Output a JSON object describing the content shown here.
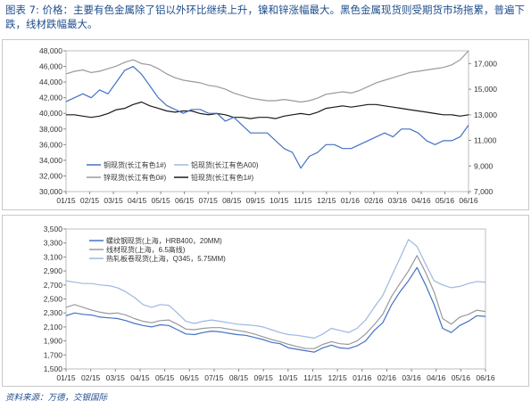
{
  "header": {
    "title": "图表 7: 价格：主要有色金属除了铝以外环比继续上升，镍和锌涨幅最大。黑色金属现货则受期货市场拖累，普遍下跌，线材跌幅最大。"
  },
  "footer": {
    "source": "资料来源：万德，交银国际"
  },
  "colors": {
    "copper": "#4472c4",
    "aluminum": "#9db8e0",
    "zinc": "#9a9a9a",
    "lead": "#1a1a1a",
    "rebar": "#4472c4",
    "wire": "#9a9a9a",
    "hrc": "#9db8e0"
  },
  "chart_data": [
    {
      "type": "line",
      "title": "",
      "x_ticks": [
        "01/15",
        "02/15",
        "03/15",
        "04/15",
        "05/15",
        "06/15",
        "07/15",
        "08/15",
        "09/15",
        "10/15",
        "11/15",
        "12/15",
        "01/16",
        "02/16",
        "03/16",
        "04/16",
        "05/16",
        "06/16"
      ],
      "y_left": {
        "min": 30000,
        "max": 48000,
        "step": 2000,
        "ticks": [
          "30,000",
          "32,000",
          "34,000",
          "36,000",
          "38,000",
          "40,000",
          "42,000",
          "44,000",
          "46,000",
          "48,000"
        ]
      },
      "y_right": {
        "min": 7000,
        "max": 18000,
        "step": 2000,
        "ticks": [
          "7,000",
          "9,000",
          "11,000",
          "13,000",
          "15,000",
          "17,000"
        ]
      },
      "legend_position": "lower-left",
      "series": [
        {
          "name": "铜现货(长江有色1#)",
          "axis": "left",
          "color_key": "copper",
          "values": [
            41500,
            42000,
            42500,
            42000,
            43000,
            42500,
            44000,
            45500,
            46000,
            45000,
            43500,
            42000,
            41000,
            40500,
            40000,
            40500,
            40500,
            40000,
            40000,
            39000,
            39500,
            38500,
            37500,
            37500,
            37500,
            36500,
            35500,
            35000,
            33000,
            34500,
            35000,
            36000,
            36000,
            35500,
            35500,
            36000,
            36500,
            37000,
            37500,
            37000,
            38000,
            38000,
            37500,
            36500,
            36000,
            36500,
            36500,
            37000,
            38500
          ]
        },
        {
          "name": "铝现货(长江有色A00)",
          "axis": "left",
          "color_key": "aluminum",
          "values": [
            13200,
            13100,
            13000,
            12900,
            12800,
            12600,
            12700,
            12500,
            12500,
            12600,
            12800,
            13000,
            13200,
            12900,
            12700,
            12500,
            12200,
            12000,
            11800,
            11600,
            11300,
            11000,
            10800,
            10700,
            10600,
            10400,
            10000,
            9800,
            9700,
            9900,
            10000,
            10200,
            10400,
            10500,
            10700,
            11000,
            11200,
            11400,
            11800,
            12000,
            12300,
            12400,
            12300,
            12200,
            12400,
            12500,
            12600,
            12500,
            12600
          ]
        },
        {
          "name": "锌现货(长江有色0#)",
          "axis": "right",
          "color_key": "zinc",
          "values": [
            16200,
            16400,
            16500,
            16300,
            16400,
            16600,
            16800,
            17100,
            17300,
            17000,
            16900,
            16600,
            16200,
            15900,
            15700,
            15600,
            15500,
            15300,
            15200,
            15000,
            14700,
            14500,
            14300,
            14200,
            14100,
            14100,
            14200,
            14100,
            14000,
            14100,
            14300,
            14600,
            14700,
            14800,
            14700,
            14900,
            15200,
            15500,
            15700,
            15900,
            16100,
            16300,
            16400,
            16500,
            16600,
            16700,
            16900,
            17300,
            18000
          ]
        },
        {
          "name": "铅现货(长江有色1#)",
          "axis": "right",
          "color_key": "lead",
          "values": [
            13000,
            13000,
            12900,
            12800,
            12900,
            13100,
            13400,
            13500,
            13800,
            14000,
            13700,
            13500,
            13300,
            13200,
            13300,
            13300,
            13100,
            13000,
            13100,
            13000,
            12800,
            12800,
            12700,
            12800,
            12800,
            12700,
            12900,
            13000,
            13100,
            13000,
            13200,
            13500,
            13600,
            13700,
            13600,
            13700,
            13800,
            13800,
            13700,
            13600,
            13500,
            13400,
            13300,
            13200,
            13100,
            13000,
            13000,
            12900,
            13000
          ]
        }
      ]
    },
    {
      "type": "line",
      "title": "",
      "x_ticks": [
        "01/15",
        "02/15",
        "03/15",
        "04/15",
        "05/15",
        "06/15",
        "07/15",
        "08/15",
        "09/15",
        "10/15",
        "11/15",
        "12/15",
        "01/16",
        "02/16",
        "03/16",
        "04/16",
        "05/16",
        "06/16"
      ],
      "y_left": {
        "min": 1500,
        "max": 3500,
        "step": 200,
        "ticks": [
          "1,500",
          "1,700",
          "1,900",
          "2,100",
          "2,300",
          "2,500",
          "2,700",
          "2,900",
          "3,100",
          "3,300",
          "3,500"
        ]
      },
      "legend_position": "top-left",
      "series": [
        {
          "name": "螺纹钢现货(上海，HRB400，20MM)",
          "color_key": "rebar",
          "values": [
            2260,
            2300,
            2280,
            2270,
            2240,
            2230,
            2220,
            2190,
            2150,
            2120,
            2100,
            2130,
            2120,
            2060,
            2000,
            1990,
            2020,
            2040,
            2030,
            2010,
            1990,
            1980,
            1950,
            1920,
            1880,
            1860,
            1800,
            1780,
            1760,
            1740,
            1800,
            1840,
            1800,
            1790,
            1830,
            1900,
            2050,
            2160,
            2410,
            2600,
            2760,
            2950,
            2700,
            2420,
            2080,
            2020,
            2120,
            2180,
            2260,
            2250
          ]
        },
        {
          "name": "线材现货(上海，6.5高线)",
          "color_key": "wire",
          "values": [
            2380,
            2420,
            2380,
            2340,
            2310,
            2290,
            2300,
            2270,
            2220,
            2180,
            2160,
            2190,
            2200,
            2140,
            2070,
            2060,
            2080,
            2090,
            2090,
            2070,
            2050,
            2030,
            2000,
            1960,
            1920,
            1890,
            1850,
            1820,
            1790,
            1790,
            1850,
            1890,
            1860,
            1850,
            1900,
            2000,
            2130,
            2280,
            2530,
            2720,
            2900,
            3120,
            2880,
            2600,
            2220,
            2140,
            2240,
            2280,
            2340,
            2320
          ]
        },
        {
          "name": "热轧板卷现货(上海，Q345，5.75MM)",
          "color_key": "hrc",
          "values": [
            2760,
            2740,
            2720,
            2720,
            2700,
            2690,
            2660,
            2600,
            2520,
            2420,
            2380,
            2420,
            2410,
            2300,
            2180,
            2150,
            2180,
            2200,
            2180,
            2160,
            2140,
            2130,
            2120,
            2100,
            2060,
            2020,
            1990,
            1980,
            1960,
            1940,
            2000,
            2080,
            2050,
            2020,
            2080,
            2200,
            2380,
            2550,
            2820,
            3080,
            3350,
            3250,
            3000,
            2760,
            2700,
            2660,
            2680,
            2720,
            2750,
            2740
          ]
        }
      ]
    }
  ]
}
